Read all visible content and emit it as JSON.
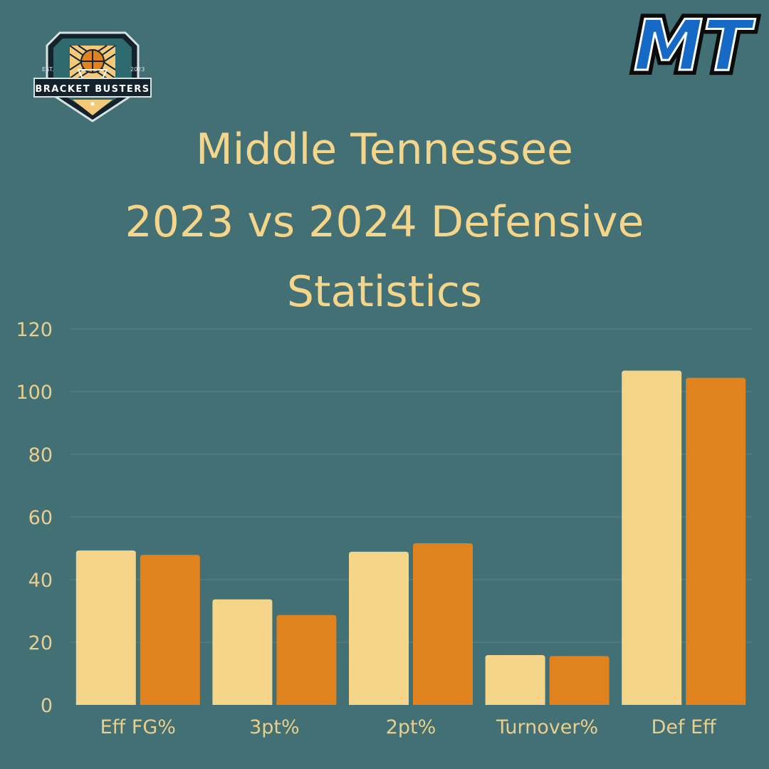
{
  "title_lines": [
    "Middle Tennessee",
    "2023 vs 2024 Defensive",
    "Statistics"
  ],
  "badges": {
    "left": {
      "est": "EST.",
      "year": "2023",
      "name": "BRACKET BUSTERS"
    },
    "right": {
      "letters": "MT"
    }
  },
  "colors": {
    "background": "#427075",
    "title": "#f4d58a",
    "series_2023": "#f4d58a",
    "series_2024": "#e0821e",
    "axis_text": "#e9cf8e",
    "grid": "#5a8489",
    "mt_blue": "#1769c6"
  },
  "chart_data": {
    "type": "bar",
    "title": "Middle Tennessee 2023 vs 2024 Defensive Statistics",
    "categories": [
      "Eff FG%",
      "3pt%",
      "2pt%",
      "Turnover%",
      "Def Eff"
    ],
    "series": [
      {
        "values": [
          49.3,
          33.7,
          48.9,
          15.9,
          106.7
        ]
      },
      {
        "values": [
          47.9,
          28.7,
          51.6,
          15.6,
          104.4
        ]
      }
    ],
    "ylim": [
      0,
      120
    ],
    "yticks": [
      "0",
      "20",
      "40",
      "60",
      "80",
      "100",
      "120"
    ],
    "grid": true,
    "legend": "none"
  }
}
